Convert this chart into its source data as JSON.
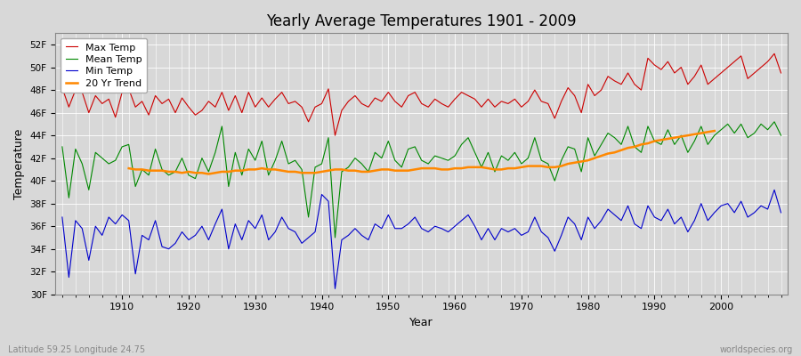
{
  "title": "Yearly Average Temperatures 1901 - 2009",
  "xlabel": "Year",
  "ylabel": "Temperature",
  "bottom_left": "Latitude 59.25 Longitude 24.75",
  "bottom_right": "worldspecies.org",
  "ylim": [
    30,
    53
  ],
  "yticks": [
    30,
    32,
    34,
    36,
    38,
    40,
    42,
    44,
    46,
    48,
    50,
    52
  ],
  "ytick_labels": [
    "30F",
    "32F",
    "34F",
    "36F",
    "38F",
    "40F",
    "42F",
    "44F",
    "46F",
    "48F",
    "50F",
    "52F"
  ],
  "year_start": 1901,
  "year_end": 2009,
  "background_color": "#d8d8d8",
  "plot_bg_color": "#d8d8d8",
  "grid_color": "#ffffff",
  "max_color": "#cc0000",
  "mean_color": "#008800",
  "min_color": "#0000cc",
  "trend_color": "#ff8800",
  "legend_labels": [
    "Max Temp",
    "Mean Temp",
    "Min Temp",
    "20 Yr Trend"
  ],
  "max_temps": [
    48.2,
    46.5,
    48.0,
    47.8,
    46.0,
    47.5,
    46.8,
    47.2,
    45.6,
    47.8,
    48.1,
    46.5,
    47.0,
    45.8,
    47.5,
    46.8,
    47.2,
    46.0,
    47.3,
    46.5,
    45.8,
    46.2,
    47.0,
    46.5,
    47.8,
    46.2,
    47.5,
    46.0,
    47.8,
    46.5,
    47.3,
    46.5,
    47.2,
    47.8,
    46.8,
    47.0,
    46.5,
    45.2,
    46.5,
    46.8,
    48.1,
    44.0,
    46.2,
    47.0,
    47.5,
    46.8,
    46.5,
    47.3,
    47.0,
    47.8,
    47.0,
    46.5,
    47.5,
    47.8,
    46.8,
    46.5,
    47.2,
    46.8,
    46.5,
    47.2,
    47.8,
    47.5,
    47.2,
    46.5,
    47.2,
    46.5,
    47.0,
    46.8,
    47.2,
    46.5,
    47.0,
    48.0,
    47.0,
    46.8,
    45.5,
    47.0,
    48.2,
    47.5,
    46.0,
    48.5,
    47.5,
    48.0,
    49.2,
    48.8,
    48.5,
    49.5,
    48.5,
    48.0,
    50.8,
    50.2,
    49.8,
    50.5,
    49.5,
    50.0,
    48.5,
    49.2,
    50.2,
    48.5,
    49.0,
    49.5,
    50.0,
    50.5,
    51.0,
    49.0,
    49.5,
    50.0,
    50.5,
    51.2,
    49.5
  ],
  "mean_temps": [
    43.0,
    38.5,
    42.8,
    41.5,
    39.2,
    42.5,
    42.0,
    41.5,
    41.8,
    43.0,
    43.2,
    39.5,
    41.0,
    40.5,
    42.8,
    41.0,
    40.5,
    40.8,
    42.0,
    40.5,
    40.2,
    42.0,
    40.8,
    42.5,
    44.8,
    39.5,
    42.5,
    40.5,
    42.8,
    41.8,
    43.5,
    40.5,
    41.8,
    43.5,
    41.5,
    41.8,
    41.0,
    36.8,
    41.2,
    41.5,
    43.8,
    35.0,
    40.8,
    41.2,
    42.0,
    41.5,
    40.8,
    42.5,
    42.0,
    43.5,
    41.8,
    41.2,
    42.8,
    43.0,
    41.8,
    41.5,
    42.2,
    42.0,
    41.8,
    42.2,
    43.2,
    43.8,
    42.5,
    41.2,
    42.5,
    40.8,
    42.2,
    41.8,
    42.5,
    41.5,
    42.0,
    43.8,
    41.8,
    41.5,
    40.0,
    41.8,
    43.0,
    42.8,
    40.8,
    43.8,
    42.2,
    43.2,
    44.2,
    43.8,
    43.2,
    44.8,
    43.0,
    42.5,
    44.8,
    43.5,
    43.2,
    44.5,
    43.2,
    44.0,
    42.5,
    43.5,
    44.8,
    43.2,
    44.0,
    44.5,
    45.0,
    44.2,
    45.0,
    43.8,
    44.2,
    45.0,
    44.5,
    45.2,
    44.0
  ],
  "min_temps": [
    36.8,
    31.5,
    36.5,
    35.8,
    33.0,
    36.0,
    35.2,
    36.8,
    36.2,
    37.0,
    36.5,
    31.8,
    35.2,
    34.8,
    36.5,
    34.2,
    34.0,
    34.5,
    35.5,
    34.8,
    35.2,
    36.0,
    34.8,
    36.2,
    37.5,
    34.0,
    36.2,
    34.8,
    36.5,
    35.8,
    37.0,
    34.8,
    35.5,
    36.8,
    35.8,
    35.5,
    34.5,
    35.0,
    35.5,
    38.8,
    38.2,
    30.5,
    34.8,
    35.2,
    35.8,
    35.2,
    34.8,
    36.2,
    35.8,
    37.0,
    35.8,
    35.8,
    36.2,
    36.8,
    35.8,
    35.5,
    36.0,
    35.8,
    35.5,
    36.0,
    36.5,
    37.0,
    36.0,
    34.8,
    35.8,
    34.8,
    35.8,
    35.5,
    35.8,
    35.2,
    35.5,
    36.8,
    35.5,
    35.0,
    33.8,
    35.2,
    36.8,
    36.2,
    34.8,
    36.8,
    35.8,
    36.5,
    37.5,
    37.0,
    36.5,
    37.8,
    36.2,
    35.8,
    37.8,
    36.8,
    36.5,
    37.5,
    36.2,
    36.8,
    35.5,
    36.5,
    38.0,
    36.5,
    37.2,
    37.8,
    38.0,
    37.2,
    38.2,
    36.8,
    37.2,
    37.8,
    37.5,
    39.2,
    37.2
  ],
  "trend_temps": [
    null,
    null,
    null,
    null,
    null,
    null,
    null,
    null,
    null,
    null,
    41.1,
    41.0,
    41.0,
    40.9,
    40.9,
    40.9,
    40.8,
    40.8,
    40.7,
    40.8,
    40.7,
    40.7,
    40.6,
    40.7,
    40.8,
    40.8,
    40.9,
    40.9,
    41.0,
    41.0,
    41.1,
    41.0,
    41.0,
    40.9,
    40.8,
    40.8,
    40.7,
    40.7,
    40.7,
    40.8,
    40.9,
    41.0,
    41.0,
    40.9,
    40.9,
    40.8,
    40.8,
    40.9,
    41.0,
    41.0,
    40.9,
    40.9,
    40.9,
    41.0,
    41.1,
    41.1,
    41.1,
    41.0,
    41.0,
    41.1,
    41.1,
    41.2,
    41.2,
    41.2,
    41.1,
    41.0,
    41.0,
    41.1,
    41.1,
    41.2,
    41.3,
    41.3,
    41.3,
    41.2,
    41.2,
    41.3,
    41.5,
    41.6,
    41.7,
    41.8,
    42.0,
    42.2,
    42.4,
    42.5,
    42.7,
    42.9,
    43.0,
    43.2,
    43.3,
    43.5,
    43.6,
    43.7,
    43.8,
    43.9,
    44.0,
    44.1,
    44.2,
    44.3,
    44.4,
    null,
    null,
    null,
    null,
    null,
    null,
    null,
    null,
    null,
    null
  ]
}
